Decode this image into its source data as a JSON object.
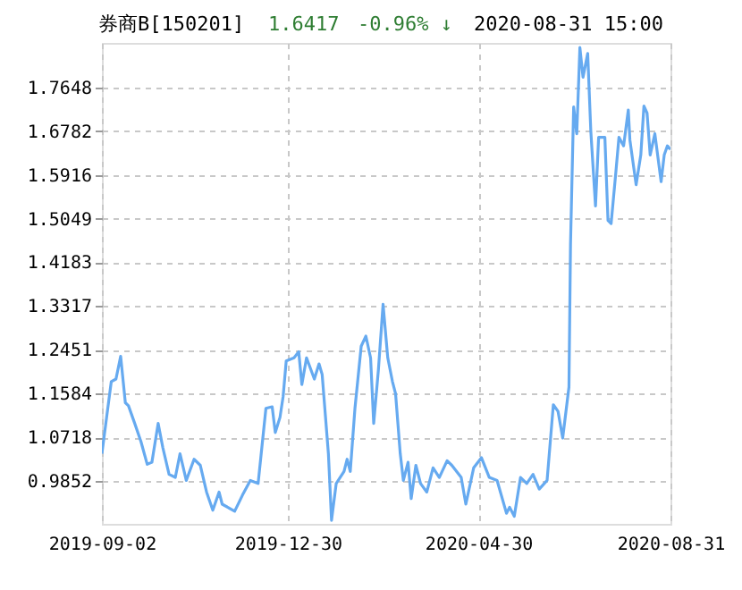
{
  "chart_data": {
    "type": "line",
    "title": "券商B[150201]",
    "annotations": [
      "1.6417",
      "-0.96% ↓",
      "2020-08-31 15:00"
    ],
    "x": [
      "2019-09-02",
      "2019-09-05",
      "2019-09-08",
      "2019-09-11",
      "2019-09-14",
      "2019-09-17",
      "2019-09-19",
      "2019-09-23",
      "2019-09-27",
      "2019-10-01",
      "2019-10-04",
      "2019-10-08",
      "2019-10-11",
      "2019-10-15",
      "2019-10-19",
      "2019-10-22",
      "2019-10-26",
      "2019-10-31",
      "2019-11-04",
      "2019-11-08",
      "2019-11-12",
      "2019-11-16",
      "2019-11-18",
      "2019-11-26",
      "2019-12-01",
      "2019-12-06",
      "2019-12-11",
      "2019-12-16",
      "2019-12-20",
      "2019-12-22",
      "2019-12-25",
      "2019-12-27",
      "2019-12-29",
      "2020-01-03",
      "2020-01-06",
      "2020-01-08",
      "2020-01-11",
      "2020-01-16",
      "2020-01-19",
      "2020-01-21",
      "2020-01-25",
      "2020-01-27",
      "2020-01-30",
      "2020-02-04",
      "2020-02-06",
      "2020-02-08",
      "2020-02-11",
      "2020-02-15",
      "2020-02-18",
      "2020-02-21",
      "2020-02-23",
      "2020-02-26",
      "2020-02-29",
      "2020-03-03",
      "2020-03-06",
      "2020-03-08",
      "2020-03-11",
      "2020-03-13",
      "2020-03-16",
      "2020-03-18",
      "2020-03-21",
      "2020-03-24",
      "2020-03-28",
      "2020-04-01",
      "2020-04-05",
      "2020-04-10",
      "2020-04-13",
      "2020-04-19",
      "2020-04-22",
      "2020-04-27",
      "2020-05-02",
      "2020-05-07",
      "2020-05-12",
      "2020-05-18",
      "2020-05-20",
      "2020-05-23",
      "2020-05-27",
      "2020-05-31",
      "2020-06-04",
      "2020-06-08",
      "2020-06-13",
      "2020-06-17",
      "2020-06-20",
      "2020-06-23",
      "2020-06-27",
      "2020-06-28",
      "2020-06-30",
      "2020-07-02",
      "2020-07-04",
      "2020-07-06",
      "2020-07-09",
      "2020-07-11",
      "2020-07-14",
      "2020-07-16",
      "2020-07-20",
      "2020-07-22",
      "2020-07-24",
      "2020-07-27",
      "2020-07-29",
      "2020-08-01",
      "2020-08-04",
      "2020-08-05",
      "2020-08-09",
      "2020-08-12",
      "2020-08-14",
      "2020-08-16",
      "2020-08-18",
      "2020-08-21",
      "2020-08-25",
      "2020-08-27",
      "2020-08-29",
      "2020-08-31"
    ],
    "series": [
      {
        "color": "#66aaf0",
        "values": [
          1.039,
          1.111,
          1.182,
          1.187,
          1.232,
          1.14,
          1.134,
          1.099,
          1.063,
          1.018,
          1.022,
          1.099,
          1.051,
          0.998,
          0.992,
          1.039,
          0.986,
          1.028,
          1.016,
          0.963,
          0.927,
          0.963,
          0.939,
          0.925,
          0.957,
          0.986,
          0.98,
          1.129,
          1.132,
          1.081,
          1.111,
          1.152,
          1.223,
          1.229,
          1.241,
          1.176,
          1.229,
          1.187,
          1.217,
          1.196,
          1.039,
          0.907,
          0.98,
          1.004,
          1.028,
          1.004,
          1.129,
          1.252,
          1.272,
          1.229,
          1.099,
          1.205,
          1.335,
          1.229,
          1.182,
          1.158,
          1.039,
          0.986,
          1.022,
          0.95,
          1.016,
          0.98,
          0.963,
          1.011,
          0.992,
          1.025,
          1.016,
          0.992,
          0.939,
          1.011,
          1.031,
          0.992,
          0.986,
          0.921,
          0.933,
          0.915,
          0.992,
          0.98,
          0.998,
          0.969,
          0.986,
          1.136,
          1.123,
          1.07,
          1.171,
          1.454,
          1.726,
          1.673,
          1.844,
          1.785,
          1.832,
          1.678,
          1.53,
          1.666,
          1.666,
          1.501,
          1.495,
          1.596,
          1.666,
          1.649,
          1.72,
          1.661,
          1.572,
          1.631,
          1.728,
          1.714,
          1.631,
          1.673,
          1.578,
          1.631,
          1.649,
          1.642
        ]
      }
    ],
    "xlim": [
      "2019-09-02",
      "2020-08-31"
    ],
    "xticks": [
      "2019-09-02",
      "2019-12-30",
      "2020-04-30",
      "2020-08-31"
    ],
    "ylim": [
      0.9,
      1.853
    ],
    "yticks": [
      0.9852,
      1.0718,
      1.1584,
      1.2451,
      1.3317,
      1.4183,
      1.5049,
      1.5916,
      1.6782,
      1.7648
    ],
    "grid": true,
    "marker": "none",
    "line_style": "solid"
  }
}
